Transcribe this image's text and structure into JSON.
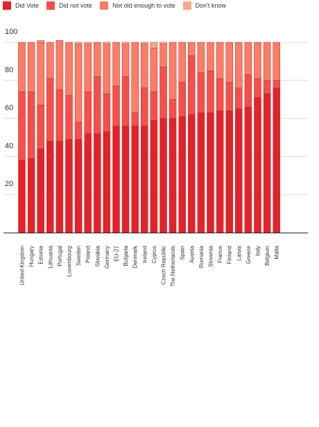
{
  "chart_data": {
    "type": "bar",
    "stacked": true,
    "title": "",
    "xlabel": "",
    "ylabel": "",
    "ylim": [
      0,
      100
    ],
    "yticks": [
      20,
      40,
      60,
      80,
      100
    ],
    "grid": true,
    "legend_position": "top-left",
    "categories": [
      "United Kingdom",
      "Hungary",
      "Estonia",
      "Lithuania",
      "Portugal",
      "Luxembourg",
      "Sweden",
      "Poland",
      "Slovakia",
      "Germany",
      "EU-27",
      "Bulgaria",
      "Denmark",
      "Ireland",
      "Cyprus",
      "Czech Republic",
      "The Netherlands",
      "Spain",
      "Austria",
      "Romania",
      "Slovenia",
      "France",
      "Finland",
      "Latvia",
      "Greece",
      "Italy",
      "Belgium",
      "Malta"
    ],
    "series": [
      {
        "name": "Did Vote",
        "color": "#e32229",
        "values": [
          38,
          39,
          44,
          48,
          48,
          49,
          49,
          52,
          52,
          53,
          56,
          56,
          56,
          56,
          59,
          60,
          60,
          61,
          62,
          63,
          63,
          64,
          64,
          65,
          66,
          71,
          73,
          76
        ]
      },
      {
        "name": "Did not vote",
        "color": "#f54f4b",
        "values": [
          36,
          35,
          23,
          33,
          27,
          23,
          9,
          22,
          30,
          20,
          21,
          26,
          7,
          20,
          15,
          27,
          10,
          18,
          31,
          21,
          22,
          17,
          15,
          11,
          17,
          10,
          7,
          4
        ]
      },
      {
        "name": "Not old enough to vote",
        "color": "#fb7d66",
        "values": [
          26,
          26,
          33,
          19,
          26,
          28,
          41,
          25,
          18,
          26,
          23,
          17,
          37,
          23,
          23,
          12,
          30,
          21,
          7,
          16,
          15,
          19,
          21,
          24,
          17,
          19,
          20,
          20
        ]
      },
      {
        "name": "Don't know",
        "color": "#fba68d",
        "values": [
          0,
          0,
          1,
          0,
          0,
          0,
          1,
          1,
          0,
          1,
          0,
          1,
          0,
          1,
          3,
          1,
          0,
          0,
          0,
          0,
          0,
          0,
          0,
          0,
          0,
          0,
          0,
          0
        ]
      }
    ]
  }
}
